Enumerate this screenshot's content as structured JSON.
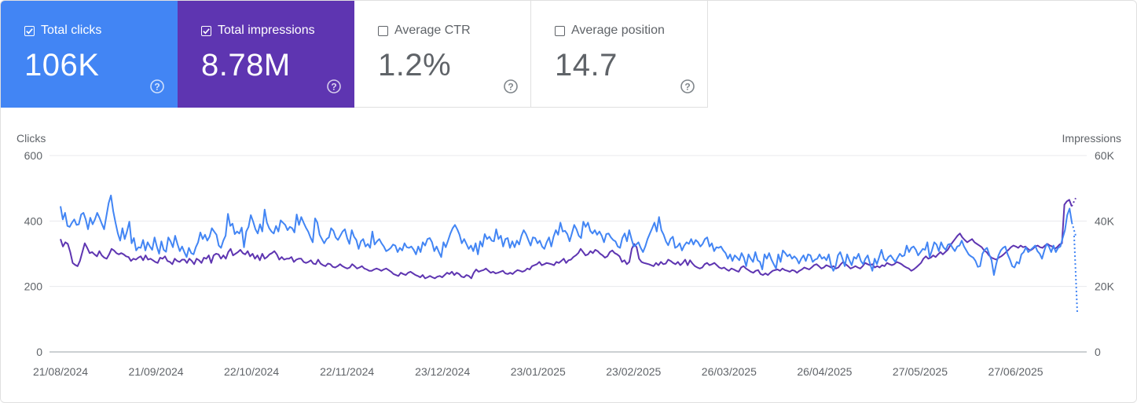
{
  "cards": [
    {
      "label": "Total clicks",
      "value": "106K",
      "checked": true
    },
    {
      "label": "Total impressions",
      "value": "8.78M",
      "checked": true
    },
    {
      "label": "Average CTR",
      "value": "1.2%",
      "checked": false
    },
    {
      "label": "Average position",
      "value": "14.7",
      "checked": false
    }
  ],
  "colors": {
    "clicks": "#4285f4",
    "impressions": "#5e35b1",
    "grid": "#e8eaed",
    "text": "#5f6368"
  },
  "chart_data": {
    "type": "line",
    "left_axis_title": "Clicks",
    "right_axis_title": "Impressions",
    "left_ticks": [
      "0",
      "200",
      "400",
      "600"
    ],
    "right_ticks": [
      "0",
      "20K",
      "40K",
      "60K"
    ],
    "ylim_left": [
      0,
      600
    ],
    "ylim_right": [
      0,
      60000
    ],
    "x_start": "2024-08-21",
    "x_end": "2025-07-16",
    "x_labels": [
      "21/08/2024",
      "21/09/2024",
      "22/10/2024",
      "22/11/2024",
      "23/12/2024",
      "23/01/2025",
      "23/02/2025",
      "26/03/2025",
      "26/04/2025",
      "27/05/2025",
      "27/06/2025"
    ],
    "legend": "none",
    "grid": true,
    "series": [
      {
        "name": "Clicks",
        "axis": "left",
        "color": "#4285f4",
        "values": [
          445,
          405,
          425,
          385,
          382,
          395,
          405,
          388,
          390,
          420,
          425,
          405,
          375,
          410,
          390,
          405,
          425,
          410,
          392,
          375,
          415,
          455,
          478,
          430,
          395,
          362,
          340,
          378,
          345,
          368,
          398,
          332,
          348,
          310,
          320,
          318,
          342,
          310,
          335,
          322,
          312,
          350,
          322,
          300,
          338,
          312,
          306,
          350,
          338,
          320,
          355,
          330,
          308,
          322,
          305,
          290,
          318,
          302,
          298,
          320,
          335,
          365,
          345,
          358,
          340,
          352,
          378,
          368,
          358,
          325,
          318,
          340,
          355,
          422,
          385,
          392,
          360,
          368,
          362,
          380,
          320,
          368,
          382,
          418,
          398,
          375,
          362,
          390,
          368,
          435,
          395,
          378,
          368,
          362,
          385,
          368,
          402,
          395,
          388,
          372,
          382,
          378,
          365,
          420,
          388,
          412,
          395,
          380,
          368,
          350,
          335,
          408,
          395,
          358,
          345,
          332,
          345,
          350,
          378,
          370,
          350,
          342,
          355,
          368,
          375,
          348,
          330,
          372,
          352,
          342,
          315,
          338,
          345,
          322,
          330,
          318,
          368,
          328,
          338,
          345,
          332,
          322,
          308,
          312,
          318,
          328,
          325,
          305,
          318,
          310,
          332,
          320,
          318,
          322,
          312,
          298,
          322,
          305,
          335,
          325,
          345,
          348,
          335,
          308,
          322,
          305,
          290,
          335,
          320,
          340,
          362,
          378,
          388,
          375,
          358,
          332,
          345,
          330,
          315,
          325,
          308,
          332,
          298,
          338,
          322,
          360,
          345,
          352,
          340,
          338,
          375,
          345,
          355,
          322,
          345,
          348,
          318,
          338,
          320,
          340,
          328,
          355,
          372,
          360,
          342,
          325,
          350,
          348,
          332,
          340,
          322,
          315,
          335,
          350,
          322,
          352,
          372,
          358,
          395,
          368,
          370,
          360,
          338,
          362,
          388,
          375,
          355,
          348,
          398,
          382,
          395,
          370,
          362,
          372,
          358,
          368,
          355,
          335,
          360,
          362,
          350,
          342,
          338,
          322,
          318,
          348,
          362,
          338,
          372,
          345,
          322,
          328,
          335,
          318,
          305,
          322,
          345,
          362,
          378,
          395,
          368,
          412,
          372,
          358,
          338,
          326,
          345,
          352,
          318,
          322,
          332,
          310,
          325,
          335,
          330,
          345,
          328,
          342,
          335,
          322,
          330,
          345,
          350,
          322,
          332,
          308,
          320,
          318,
          322,
          310,
          302,
          285,
          298,
          278,
          295,
          288,
          280,
          302,
          288,
          262,
          298,
          285,
          275,
          305,
          280,
          275,
          252,
          298,
          285,
          302,
          282,
          268,
          255,
          298,
          275,
          310,
          302,
          292,
          298,
          285,
          292,
          285,
          270,
          285,
          295,
          278,
          298,
          295,
          275,
          282,
          285,
          298,
          285,
          290,
          280,
          298,
          265,
          248,
          262,
          295,
          305,
          285,
          262,
          298,
          280,
          265,
          290,
          285,
          300,
          278,
          268,
          285,
          295,
          270,
          248,
          285,
          268,
          290,
          312,
          285,
          278,
          290,
          295,
          285,
          275,
          288,
          300,
          292,
          295,
          325,
          305,
          318,
          322,
          312,
          295,
          305,
          315,
          312,
          335,
          290,
          310,
          335,
          328,
          308,
          335,
          320,
          312,
          328,
          330,
          318,
          308,
          322,
          325,
          340,
          322,
          310,
          298,
          292,
          288,
          278,
          260,
          262,
          300,
          312,
          318,
          298,
          280,
          235,
          268,
          295,
          310,
          318,
          322,
          298,
          282,
          262,
          258,
          275,
          270,
          298,
          305,
          320,
          305,
          312,
          318,
          325,
          308,
          300,
          285,
          310,
          330,
          322,
          305,
          325,
          305,
          318,
          322,
          348,
          372,
          418,
          438,
          395,
          355
        ]
      },
      {
        "name": "Impressions",
        "axis": "right",
        "color": "#5e35b1",
        "values": [
          34500,
          32200,
          33500,
          33000,
          30500,
          27200,
          26600,
          26200,
          27800,
          30500,
          33200,
          31800,
          30200,
          30500,
          29800,
          29200,
          30800,
          29500,
          28800,
          28500,
          29800,
          31500,
          31000,
          30200,
          29800,
          30200,
          29800,
          29200,
          29000,
          27800,
          28500,
          28200,
          28800,
          29200,
          28000,
          29500,
          28200,
          28500,
          28000,
          27500,
          27200,
          28800,
          28500,
          29200,
          27800,
          27500,
          26800,
          28500,
          27800,
          27500,
          28200,
          28200,
          27200,
          28500,
          27800,
          26800,
          28500,
          28000,
          27200,
          28800,
          28500,
          29500,
          27200,
          29500,
          30000,
          29800,
          28500,
          29500,
          28500,
          30500,
          31500,
          29500,
          30000,
          30500,
          31200,
          30200,
          29800,
          30800,
          29200,
          30000,
          28500,
          29500,
          28000,
          30000,
          28500,
          29000,
          29800,
          30200,
          30800,
          29800,
          28200,
          29000,
          28200,
          28500,
          28500,
          29000,
          27500,
          28200,
          28500,
          28500,
          27500,
          27200,
          27500,
          28000,
          27000,
          26800,
          28200,
          27000,
          26500,
          26200,
          27000,
          26800,
          26000,
          25800,
          26200,
          26800,
          26200,
          25800,
          25500,
          25800,
          26800,
          26200,
          25500,
          25800,
          26200,
          25500,
          25200,
          24800,
          24800,
          25200,
          25500,
          25200,
          24800,
          25200,
          25500,
          25000,
          24500,
          23800,
          23500,
          23200,
          24200,
          23800,
          23500,
          24200,
          24500,
          24000,
          23500,
          23200,
          22800,
          23500,
          22500,
          22800,
          23200,
          22800,
          22500,
          23000,
          23200,
          22800,
          23500,
          24200,
          23800,
          24500,
          23500,
          24200,
          23800,
          23000,
          22800,
          23500,
          23200,
          22500,
          24200,
          25200,
          24500,
          24800,
          25000,
          25500,
          24800,
          24200,
          24500,
          24000,
          24200,
          24500,
          24800,
          24000,
          23800,
          24200,
          23800,
          24500,
          25000,
          24800,
          24500,
          24800,
          25500,
          25200,
          26200,
          26500,
          26800,
          27500,
          26500,
          26800,
          27200,
          27000,
          26800,
          26500,
          27500,
          27200,
          27800,
          28500,
          27200,
          28000,
          28200,
          29000,
          29500,
          30200,
          31500,
          30500,
          29500,
          29800,
          30800,
          30200,
          31200,
          30800,
          30000,
          29500,
          28800,
          29200,
          30500,
          31000,
          30200,
          29800,
          29200,
          27500,
          28000,
          26800,
          27500,
          31500,
          33000,
          32000,
          28500,
          27500,
          27200,
          27000,
          26800,
          26500,
          26200,
          27200,
          26500,
          27500,
          26800,
          27000,
          28200,
          27800,
          27200,
          26800,
          27500,
          26500,
          27200,
          28200,
          26500,
          28000,
          27000,
          26200,
          25800,
          25500,
          25800,
          26800,
          27200,
          26500,
          26800,
          27200,
          26500,
          25800,
          25500,
          25800,
          25200,
          24800,
          25500,
          25200,
          24800,
          24500,
          25800,
          26200,
          25500,
          25000,
          24500,
          24200,
          24800,
          25000,
          23800,
          23500,
          24000,
          23500,
          24200,
          24800,
          25000,
          25200,
          24800,
          25500,
          25000,
          24800,
          24500,
          25000,
          24800,
          24200,
          24800,
          25200,
          25800,
          25500,
          25200,
          25800,
          26500,
          26800,
          26200,
          25500,
          25800,
          26500,
          26200,
          25800,
          26200,
          25500,
          25800,
          26800,
          27500,
          26800,
          26200,
          25500,
          25800,
          26200,
          25800,
          25500,
          26200,
          27200,
          26800,
          26500,
          26800,
          25800,
          26200,
          25800,
          26500,
          26200,
          27200,
          26800,
          26500,
          26800,
          27500,
          27200,
          26800,
          26200,
          25800,
          25500,
          24800,
          25200,
          25800,
          26500,
          27200,
          28500,
          29200,
          28500,
          28800,
          29500,
          29000,
          29800,
          30500,
          29800,
          30500,
          31200,
          32500,
          33500,
          34500,
          35500,
          36200,
          35000,
          34200,
          33500,
          34000,
          34500,
          33500,
          33000,
          32500,
          32000,
          31000,
          30500,
          29500,
          28800,
          28500,
          28200,
          28800,
          29200,
          29800,
          30500,
          31200,
          32000,
          32500,
          32200,
          31800,
          32500,
          32000,
          32200,
          31500,
          31000,
          31500,
          32200,
          32500,
          32000,
          31800,
          32500,
          33000,
          32500,
          32200,
          31500,
          32000,
          32800,
          33200,
          45000,
          46000,
          46500,
          44500,
          47000
        ]
      }
    ]
  }
}
